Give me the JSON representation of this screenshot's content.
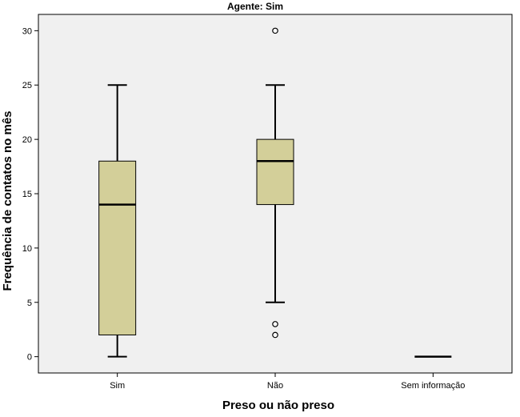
{
  "chart_data": {
    "type": "boxplot",
    "title": "Agente: Sim",
    "xlabel": "Preso ou não preso",
    "ylabel": "Frequência de contatos no mês",
    "categories": [
      "Sim",
      "Não",
      "Sem informação"
    ],
    "ylim": [
      -1.5,
      31.5
    ],
    "yticks": [
      0,
      5,
      10,
      15,
      20,
      25,
      30
    ],
    "grid": false,
    "legend": "none",
    "box_color": "#d3cf99",
    "plot_background": "#f0f0f0",
    "boxes": [
      {
        "category": "Sim",
        "whisker_low": 0,
        "q1": 2,
        "median": 14,
        "q3": 18,
        "whisker_high": 25,
        "outliers": []
      },
      {
        "category": "Não",
        "whisker_low": 5,
        "q1": 14,
        "median": 18,
        "q3": 20,
        "whisker_high": 25,
        "outliers": [
          2,
          3,
          30
        ]
      },
      {
        "category": "Sem informação",
        "whisker_low": 0,
        "q1": 0,
        "median": 0,
        "q3": 0,
        "whisker_high": 0,
        "outliers": []
      }
    ]
  }
}
